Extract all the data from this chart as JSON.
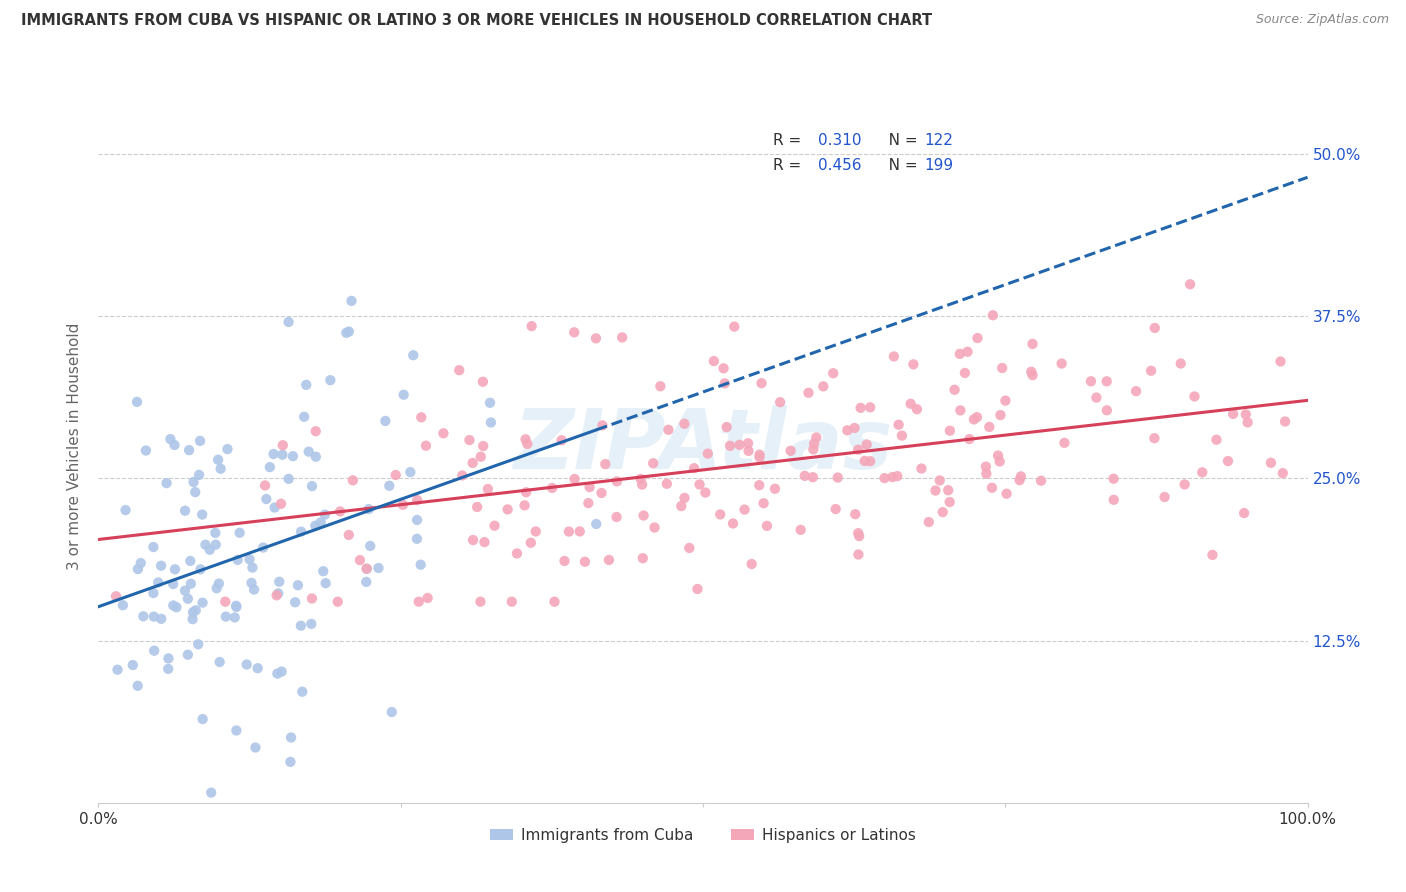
{
  "title": "IMMIGRANTS FROM CUBA VS HISPANIC OR LATINO 3 OR MORE VEHICLES IN HOUSEHOLD CORRELATION CHART",
  "source": "Source: ZipAtlas.com",
  "ylabel_label": "3 or more Vehicles in Household",
  "legend_label1": "Immigrants from Cuba",
  "legend_label2": "Hispanics or Latinos",
  "r1": "0.310",
  "n1": "122",
  "r2": "0.456",
  "n2": "199",
  "color_blue": "#aec6e8",
  "color_pink": "#f4a7b9",
  "color_blue_line": "#2166ac",
  "color_pink_line": "#d6405a",
  "color_blue_text": "#2255cc",
  "color_title": "#333333",
  "color_source": "#888888",
  "color_axis_text": "#333333",
  "color_grid": "#cccccc",
  "seed": 42,
  "xlim": [
    0.0,
    1.0
  ],
  "ylim": [
    0.0,
    0.55
  ],
  "background_color": "#ffffff",
  "watermark": "ZIPAtlas"
}
